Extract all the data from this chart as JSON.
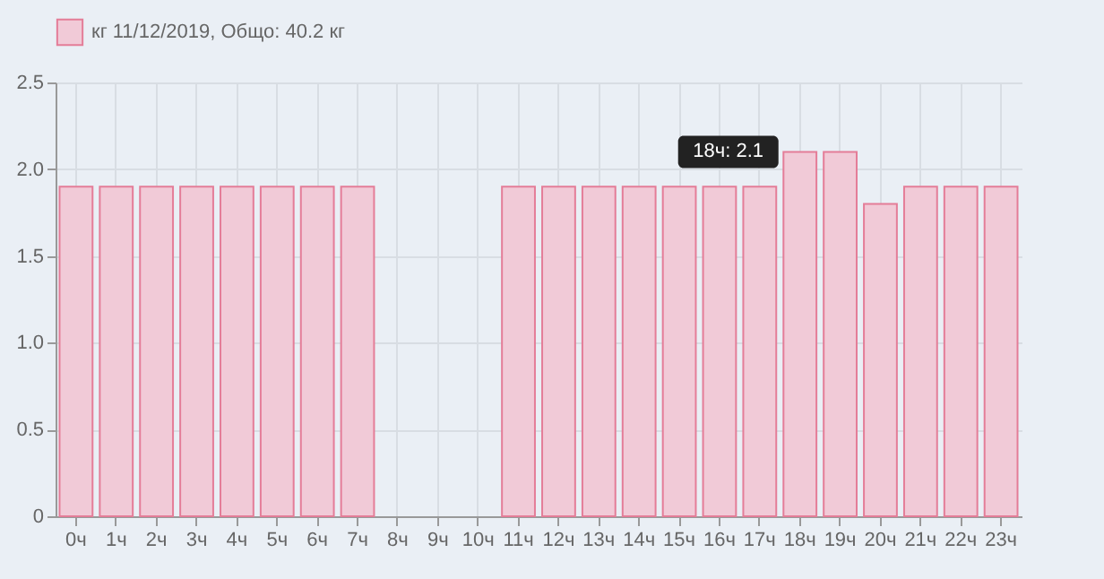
{
  "chart_data": {
    "type": "bar",
    "categories": [
      "0ч",
      "1ч",
      "2ч",
      "3ч",
      "4ч",
      "5ч",
      "6ч",
      "7ч",
      "8ч",
      "9ч",
      "10ч",
      "11ч",
      "12ч",
      "13ч",
      "14ч",
      "15ч",
      "16ч",
      "17ч",
      "18ч",
      "19ч",
      "20ч",
      "21ч",
      "22ч",
      "23ч"
    ],
    "series": [
      {
        "name": "кг 11/12/2019, Общо: 40.2 кг",
        "color": "#f1cad7",
        "values": [
          1.9,
          1.9,
          1.9,
          1.9,
          1.9,
          1.9,
          1.9,
          1.9,
          0,
          0,
          0,
          1.9,
          1.9,
          1.9,
          1.9,
          1.9,
          1.9,
          1.9,
          2.1,
          2.1,
          1.8,
          1.9,
          1.9,
          1.9
        ]
      }
    ],
    "ylim": [
      0,
      2.5
    ],
    "yticks": [
      0,
      {
        "value": 0.5,
        "label": "0.5"
      },
      {
        "value": 1,
        "label": "1.0"
      },
      {
        "value": 1.5,
        "label": "1.5"
      },
      {
        "value": 2,
        "label": "2.0"
      },
      {
        "value": 2.5,
        "label": "2.5"
      }
    ],
    "grid": true,
    "legend": "top",
    "annotations": [
      {
        "text": "18ч: 2.1",
        "x": "18ч",
        "y": 2.1
      }
    ]
  }
}
